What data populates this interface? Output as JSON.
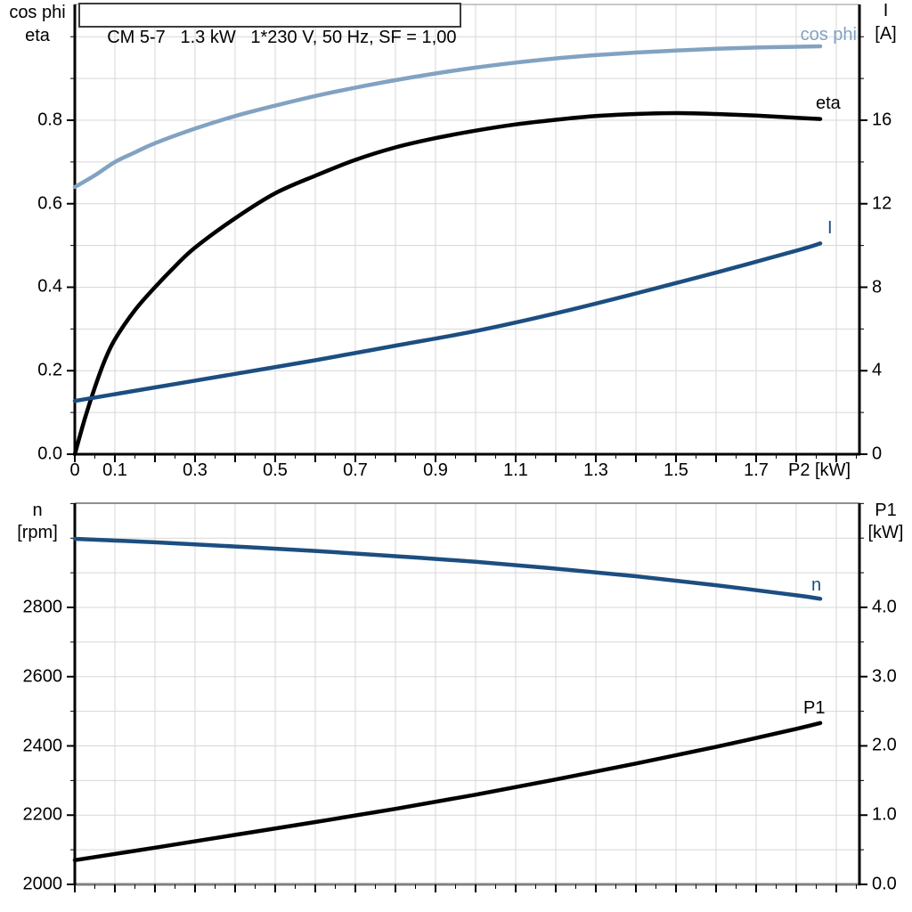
{
  "colors": {
    "light_blue": "#82a2c2",
    "dark_blue": "#1c4e80",
    "black": "#000000",
    "grid": "#d7d7d7",
    "frame_gray": "#909090",
    "bottom_axis_gray": "#808080"
  },
  "chart_data": [
    {
      "type": "line",
      "title": "CM 5-7   1.3 kW   1*230 V, 50 Hz, SF = 1,00",
      "xlabel": "P2 [kW]",
      "ylabel_left": [
        "cos phi",
        "eta"
      ],
      "ylabel_right": [
        "I",
        "[A]"
      ],
      "xlim": [
        0,
        1.9578
      ],
      "ylim_left": [
        0,
        1.0773
      ],
      "ylim_right": [
        0,
        21.547
      ],
      "grid": {
        "x_step": 0.1,
        "y_step": 0.1
      },
      "xticks": {
        "labeled": [
          0,
          0.1,
          0.3,
          0.5,
          0.7,
          0.9,
          1.1,
          1.3,
          1.5,
          1.7
        ],
        "labels": [
          "0",
          "0.1",
          "0.3",
          "0.5",
          "0.7",
          "0.9",
          "1.1",
          "1.3",
          "1.5",
          "1.7"
        ],
        "major_step": 0.1,
        "minor_step": 0.05
      },
      "yticks_left": {
        "labeled": [
          0,
          0.2,
          0.4,
          0.6,
          0.8
        ],
        "labels": [
          "0.0",
          "0.2",
          "0.4",
          "0.6",
          "0.8"
        ],
        "minor_step": 0.1
      },
      "yticks_right": {
        "labeled": [
          0,
          4,
          8,
          12,
          16
        ],
        "labels": [
          "0",
          "4",
          "8",
          "12",
          "16"
        ],
        "minor_step": 2
      },
      "series": [
        {
          "name": "cos phi",
          "axis": "left",
          "color": "#82a2c2",
          "points": [
            [
              0,
              0.64
            ],
            [
              0.05,
              0.668
            ],
            [
              0.1,
              0.7
            ],
            [
              0.15,
              0.723
            ],
            [
              0.2,
              0.745
            ],
            [
              0.3,
              0.78
            ],
            [
              0.4,
              0.81
            ],
            [
              0.5,
              0.835
            ],
            [
              0.6,
              0.858
            ],
            [
              0.7,
              0.878
            ],
            [
              0.8,
              0.896
            ],
            [
              0.9,
              0.912
            ],
            [
              1.0,
              0.926
            ],
            [
              1.1,
              0.938
            ],
            [
              1.2,
              0.948
            ],
            [
              1.3,
              0.956
            ],
            [
              1.4,
              0.962
            ],
            [
              1.5,
              0.967
            ],
            [
              1.6,
              0.971
            ],
            [
              1.7,
              0.974
            ],
            [
              1.8,
              0.976
            ],
            [
              1.86,
              0.977
            ]
          ]
        },
        {
          "name": "eta",
          "axis": "left",
          "color": "#000000",
          "points": [
            [
              0,
              0
            ],
            [
              0.025,
              0.085
            ],
            [
              0.05,
              0.16
            ],
            [
              0.075,
              0.225
            ],
            [
              0.1,
              0.275
            ],
            [
              0.15,
              0.345
            ],
            [
              0.2,
              0.4
            ],
            [
              0.25,
              0.45
            ],
            [
              0.3,
              0.495
            ],
            [
              0.4,
              0.565
            ],
            [
              0.5,
              0.625
            ],
            [
              0.6,
              0.667
            ],
            [
              0.7,
              0.705
            ],
            [
              0.8,
              0.735
            ],
            [
              0.9,
              0.757
            ],
            [
              1.0,
              0.775
            ],
            [
              1.1,
              0.79
            ],
            [
              1.2,
              0.801
            ],
            [
              1.3,
              0.81
            ],
            [
              1.4,
              0.815
            ],
            [
              1.5,
              0.817
            ],
            [
              1.6,
              0.815
            ],
            [
              1.7,
              0.811
            ],
            [
              1.8,
              0.806
            ],
            [
              1.86,
              0.803
            ]
          ]
        },
        {
          "name": "I",
          "axis": "right",
          "color": "#1c4e80",
          "points": [
            [
              0,
              2.55
            ],
            [
              0.2,
              3.2
            ],
            [
              0.4,
              3.85
            ],
            [
              0.6,
              4.5
            ],
            [
              0.8,
              5.2
            ],
            [
              1.0,
              5.9
            ],
            [
              1.2,
              6.75
            ],
            [
              1.4,
              7.7
            ],
            [
              1.6,
              8.7
            ],
            [
              1.8,
              9.75
            ],
            [
              1.86,
              10.1
            ]
          ]
        }
      ]
    },
    {
      "type": "line",
      "title": "",
      "xlabel": "",
      "ylabel_left": [
        "n",
        "[rpm]"
      ],
      "ylabel_right": [
        "P1",
        "[kW]"
      ],
      "xlim": [
        0,
        1.9578
      ],
      "ylim_left": [
        2000,
        3101
      ],
      "ylim_right": [
        0,
        5.504
      ],
      "grid": {
        "x_step": 0.1,
        "y_step": 100
      },
      "xticks": {
        "labeled": [],
        "labels": [],
        "major_step": 0.1,
        "minor_step": 0.05
      },
      "yticks_left": {
        "labeled": [
          2000,
          2200,
          2400,
          2600,
          2800
        ],
        "labels": [
          "2000",
          "2200",
          "2400",
          "2600",
          "2800"
        ],
        "minor_step": 100
      },
      "yticks_right": {
        "labeled": [
          0,
          1,
          2,
          3,
          4
        ],
        "labels": [
          "0.0",
          "1.0",
          "2.0",
          "3.0",
          "4.0"
        ],
        "minor_step": 0.5
      },
      "series": [
        {
          "name": "n",
          "axis": "left",
          "color": "#1c4e80",
          "points": [
            [
              0,
              2998
            ],
            [
              0.2,
              2988
            ],
            [
              0.4,
              2976
            ],
            [
              0.6,
              2963
            ],
            [
              0.8,
              2948
            ],
            [
              1.0,
              2932
            ],
            [
              1.2,
              2912
            ],
            [
              1.4,
              2890
            ],
            [
              1.6,
              2864
            ],
            [
              1.8,
              2835
            ],
            [
              1.86,
              2825
            ]
          ]
        },
        {
          "name": "P1",
          "axis": "right",
          "color": "#000000",
          "points": [
            [
              0,
              0.35
            ],
            [
              0.2,
              0.53
            ],
            [
              0.4,
              0.715
            ],
            [
              0.6,
              0.9
            ],
            [
              0.8,
              1.09
            ],
            [
              1.0,
              1.295
            ],
            [
              1.2,
              1.515
            ],
            [
              1.4,
              1.745
            ],
            [
              1.6,
              1.985
            ],
            [
              1.8,
              2.245
            ],
            [
              1.86,
              2.33
            ]
          ]
        }
      ]
    }
  ]
}
